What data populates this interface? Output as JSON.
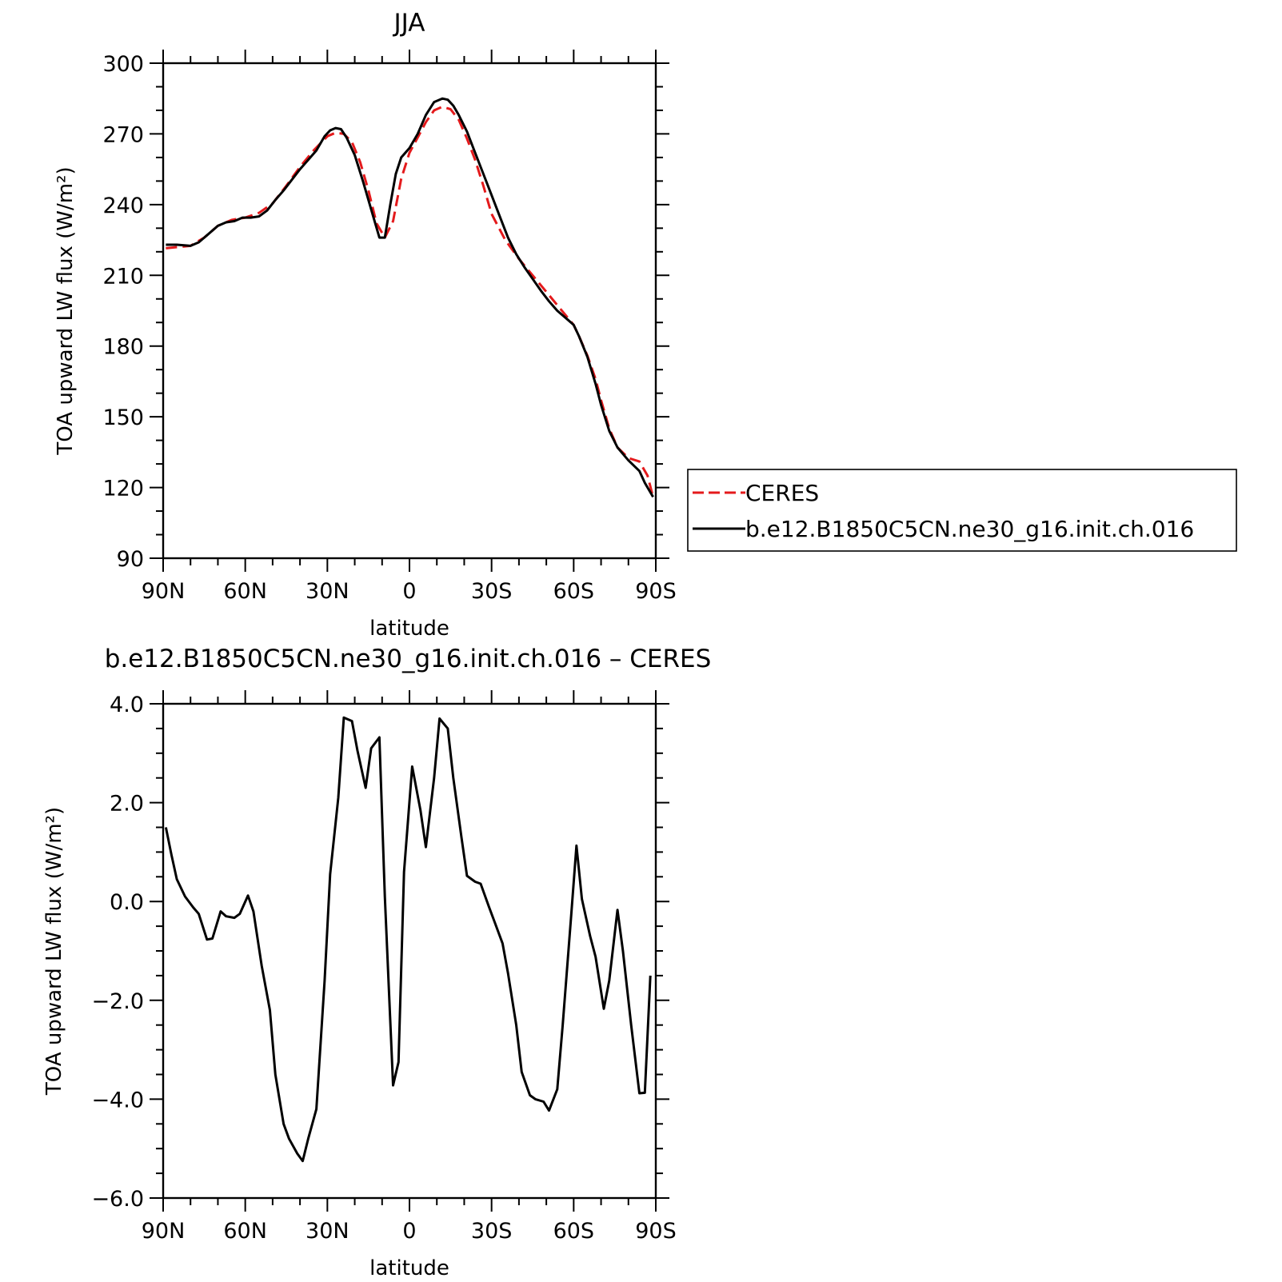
{
  "chart_data": [
    {
      "type": "line",
      "title": "JJA",
      "xlabel": "latitude",
      "ylabel": "TOA upward LW flux (W/m²)",
      "xlim": [
        90,
        -90
      ],
      "ylim": [
        90,
        300
      ],
      "xticks": [
        {
          "value": 90,
          "label": "90N"
        },
        {
          "value": 60,
          "label": "60N"
        },
        {
          "value": 30,
          "label": "30N"
        },
        {
          "value": 0,
          "label": "0"
        },
        {
          "value": -30,
          "label": "30S"
        },
        {
          "value": -60,
          "label": "60S"
        },
        {
          "value": -90,
          "label": "90S"
        }
      ],
      "yticks": [
        {
          "value": 90,
          "label": "90"
        },
        {
          "value": 120,
          "label": "120"
        },
        {
          "value": 150,
          "label": "150"
        },
        {
          "value": 180,
          "label": "180"
        },
        {
          "value": 210,
          "label": "210"
        },
        {
          "value": 240,
          "label": "240"
        },
        {
          "value": 270,
          "label": "270"
        },
        {
          "value": 300,
          "label": "300"
        }
      ],
      "legend_position": "right",
      "series": [
        {
          "name": "CERES",
          "color": "#e41a1c",
          "dash": "dashed",
          "x": [
            89,
            80,
            75,
            70,
            65,
            60,
            55,
            50,
            45,
            40,
            35,
            30,
            27,
            24,
            21,
            18,
            15,
            12,
            9,
            6,
            3,
            0,
            -3,
            -6,
            -9,
            -12,
            -15,
            -18,
            -21,
            -24,
            -27,
            -30,
            -35,
            -40,
            -45,
            -50,
            -55,
            -60,
            -62,
            -65,
            -68,
            -70,
            -73,
            -76,
            -80,
            -84,
            -87,
            -89
          ],
          "y": [
            221.5,
            222.5,
            226,
            231,
            233.5,
            234.5,
            236.5,
            240.5,
            248,
            256,
            263,
            269,
            270.5,
            270,
            266.5,
            258,
            246,
            232,
            226,
            233,
            251,
            262,
            268.5,
            275,
            280,
            281.5,
            280.5,
            276,
            268,
            259,
            248,
            236,
            225,
            217,
            210,
            203,
            196,
            189,
            184,
            176,
            166,
            157,
            145,
            137,
            132.5,
            131,
            125,
            116
          ]
        },
        {
          "name": "b.e12.B1850C5CN.ne30_g16.init.ch.016",
          "color": "#000000",
          "dash": "solid",
          "x": [
            89,
            85,
            80,
            77,
            74,
            70,
            67,
            64,
            61,
            58,
            55,
            52,
            49,
            46,
            43,
            40,
            37,
            34,
            31,
            29,
            27,
            25,
            23,
            20,
            17,
            14,
            11,
            9,
            7,
            5,
            3,
            0,
            -3,
            -6,
            -9,
            -12,
            -14,
            -16,
            -18,
            -21,
            -24,
            -27,
            -30,
            -33,
            -36,
            -39,
            -42,
            -45,
            -48,
            -51,
            -54,
            -57,
            -60,
            -62,
            -65,
            -68,
            -70,
            -73,
            -76,
            -80,
            -84,
            -86,
            -89
          ],
          "y": [
            223,
            223,
            222.5,
            224,
            227,
            231,
            232.5,
            233,
            234.5,
            234.5,
            235,
            237.5,
            242,
            246,
            250.5,
            255,
            259,
            263,
            269,
            271.5,
            272.5,
            272,
            268.5,
            261,
            250,
            238,
            226,
            226,
            240,
            253,
            260,
            264,
            270,
            278,
            283.5,
            285,
            284.5,
            282,
            278,
            271,
            262,
            253,
            244,
            235,
            226,
            219,
            213.5,
            208.5,
            203.5,
            199,
            195,
            192,
            189,
            184,
            175.5,
            164,
            155,
            144,
            137,
            131.5,
            127,
            122,
            116
          ]
        }
      ]
    },
    {
      "type": "line",
      "title": "b.e12.B1850C5CN.ne30_g16.init.ch.016 – CERES",
      "xlabel": "latitude",
      "ylabel": "TOA upward LW flux (W/m²)",
      "xlim": [
        90,
        -90
      ],
      "ylim": [
        -6,
        4
      ],
      "xticks": [
        {
          "value": 90,
          "label": "90N"
        },
        {
          "value": 60,
          "label": "60N"
        },
        {
          "value": 30,
          "label": "30N"
        },
        {
          "value": 0,
          "label": "0"
        },
        {
          "value": -30,
          "label": "30S"
        },
        {
          "value": -60,
          "label": "60S"
        },
        {
          "value": -90,
          "label": "90S"
        }
      ],
      "yticks": [
        {
          "value": -6,
          "label": "−6.0"
        },
        {
          "value": -4,
          "label": "−4.0"
        },
        {
          "value": -2,
          "label": "−2.0"
        },
        {
          "value": 0,
          "label": "0.0"
        },
        {
          "value": 2,
          "label": "2.0"
        },
        {
          "value": 4,
          "label": "4.0"
        }
      ],
      "series": [
        {
          "color": "#000000",
          "dash": "solid",
          "x": [
            89,
            87,
            85,
            82,
            79,
            77,
            74,
            72,
            69,
            67,
            64,
            62,
            59,
            57,
            54,
            51,
            49,
            46,
            44,
            41,
            39,
            37,
            34,
            31,
            29,
            26,
            24,
            21,
            19,
            16,
            14,
            11,
            9,
            6,
            4,
            2,
            -1,
            -4,
            -6,
            -9,
            -11,
            -14,
            -16,
            -19,
            -21,
            -24,
            -26,
            -29,
            -31,
            -34,
            -36,
            -39,
            -41,
            -44,
            -46,
            -49,
            -51,
            -54,
            -56,
            -59,
            -61,
            -63,
            -66,
            -68,
            -71,
            -73,
            -76,
            -78,
            -81,
            -84,
            -86,
            -88
          ],
          "y": [
            1.5,
            0.95,
            0.45,
            0.1,
            -0.12,
            -0.25,
            -0.77,
            -0.75,
            -0.2,
            -0.3,
            -0.33,
            -0.25,
            0.12,
            -0.2,
            -1.3,
            -2.2,
            -3.5,
            -4.5,
            -4.8,
            -5.1,
            -5.25,
            -4.8,
            -4.2,
            -1.6,
            0.55,
            2.1,
            3.72,
            3.65,
            3.05,
            2.3,
            3.1,
            3.32,
            0.1,
            -3.72,
            -3.25,
            0.6,
            2.73,
            1.85,
            1.1,
            2.5,
            3.7,
            3.5,
            2.5,
            1.3,
            0.52,
            0.4,
            0.36,
            -0.1,
            -0.4,
            -0.85,
            -1.45,
            -2.5,
            -3.45,
            -3.92,
            -4.0,
            -4.05,
            -4.23,
            -3.8,
            -2.5,
            -0.35,
            1.13,
            0.05,
            -0.7,
            -1.12,
            -2.17,
            -1.6,
            -0.17,
            -1.0,
            -2.5,
            -3.88,
            -3.87,
            -1.5
          ]
        }
      ]
    }
  ]
}
